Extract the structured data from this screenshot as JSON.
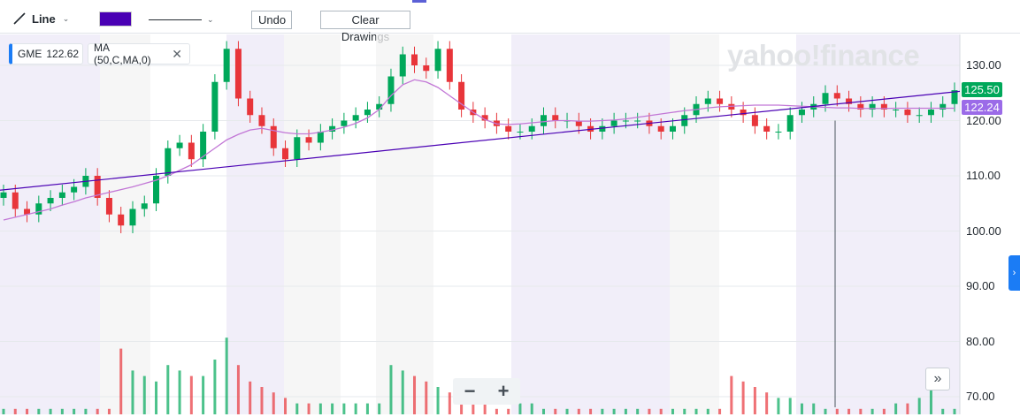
{
  "toolbar": {
    "tool_label": "Line",
    "color": "#4a00b4",
    "undo_label": "Undo",
    "clear_label": "Clear Drawings"
  },
  "legend": {
    "symbol": "GME",
    "price": "122.62",
    "indicator": "MA (50,C,MA,0)",
    "close_glyph": "✕"
  },
  "watermark": "yahoo!finance",
  "price_tags": {
    "last": "125.50",
    "ma": "122.24"
  },
  "zoom": {
    "minus": "−",
    "plus": "+"
  },
  "scroll_end_glyph": "»",
  "side_button_glyph": "›",
  "colors": {
    "up": "#00a85a",
    "down": "#e8353a",
    "ma": "#c277d6",
    "trendline": "#4a00b4",
    "band": "#ece8f7",
    "band_alt": "#f3f3f3"
  },
  "chart_data": {
    "type": "candlestick",
    "symbol": "GME",
    "ylim": [
      68,
      133
    ],
    "y_ticks": [
      "130.00",
      "120.00",
      "110.00",
      "100.00",
      "90.00",
      "80.00",
      "70.00"
    ],
    "close": [
      107,
      104,
      103,
      105,
      106,
      107,
      108,
      110,
      106,
      103,
      101,
      104,
      105,
      110,
      115,
      116,
      113,
      118,
      127,
      133,
      124,
      121,
      119,
      115,
      113,
      117,
      116,
      118,
      119,
      120,
      121,
      122,
      123,
      128,
      132,
      130,
      129,
      133,
      127,
      122,
      121,
      120,
      119,
      118,
      118,
      119,
      121,
      120,
      120,
      119,
      118,
      119,
      120,
      120,
      120,
      119,
      118,
      119,
      121,
      123,
      124,
      123,
      122,
      121,
      119,
      118,
      118,
      121,
      122,
      123,
      125,
      124,
      123,
      122,
      123,
      122,
      122,
      121,
      121,
      122,
      123,
      125.5
    ],
    "ma": [
      102,
      102.5,
      103,
      103.5,
      104,
      104.7,
      105.3,
      106,
      106.5,
      107,
      107.5,
      108,
      108.6,
      109.2,
      110,
      111,
      112,
      113.5,
      115,
      116.5,
      117.5,
      118.3,
      118.6,
      118.2,
      117.8,
      117.6,
      117.6,
      117.9,
      118.3,
      118.8,
      119.5,
      120.5,
      122,
      124.5,
      126.5,
      127.4,
      127,
      126,
      124.5,
      123,
      121.5,
      120.2,
      119.4,
      119.3,
      119.4,
      119.6,
      119.8,
      120,
      120,
      119.9,
      119.9,
      120,
      120.1,
      120.3,
      120.6,
      120.9,
      121.2,
      121.5,
      121.8,
      122,
      122.3,
      122.5,
      122.6,
      122.7,
      122.8,
      122.8,
      122.8,
      122.7,
      122.6,
      122.5,
      122.4,
      122.3,
      122.3,
      122.2,
      122.2,
      122.2,
      122.24,
      122.24,
      122.24,
      122.24,
      122.24,
      122.24
    ],
    "volume": [
      1,
      1,
      1,
      1,
      1,
      1,
      1,
      1,
      1,
      1,
      12,
      8,
      7,
      6,
      9,
      8,
      7,
      7,
      10,
      14,
      9,
      6,
      5,
      4,
      3,
      2,
      2,
      2,
      2,
      2,
      2,
      2,
      2,
      9,
      8,
      7,
      6,
      5,
      4,
      3,
      2,
      2,
      1,
      1,
      2,
      2,
      1,
      1,
      1,
      1,
      1,
      1,
      1,
      1,
      1,
      1,
      1,
      1,
      1,
      1,
      1,
      1,
      7,
      6,
      5,
      4,
      3,
      3,
      2,
      2,
      1,
      1,
      1,
      1,
      1,
      1,
      2,
      2,
      3,
      5,
      1,
      1
    ],
    "trendline": {
      "start": 107.4,
      "end": 125.3
    },
    "last_price": 125.5,
    "ma_last": 122.24,
    "indicator": "MA (50,C,MA,0)"
  }
}
